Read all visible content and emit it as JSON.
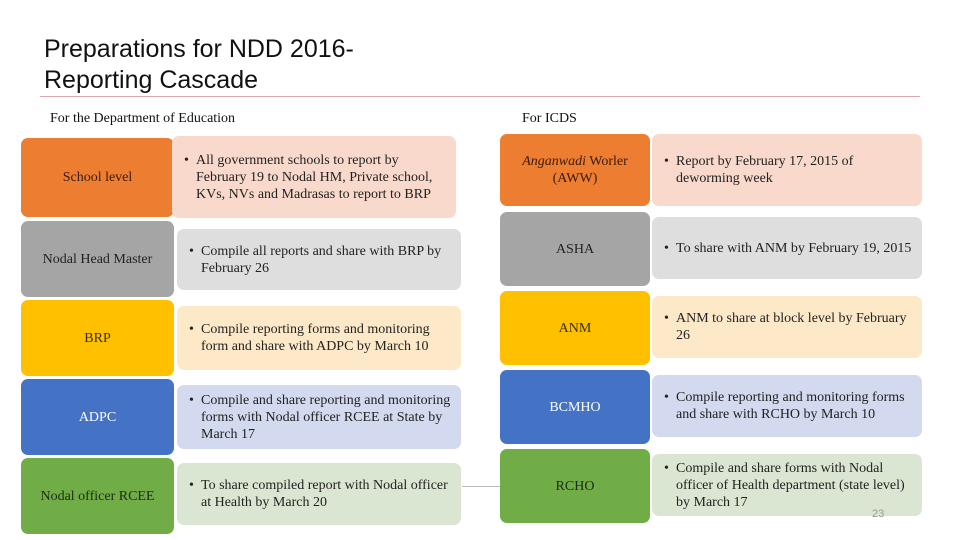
{
  "slide": {
    "title_line1": "Preparations for NDD 2016-",
    "title_line2": "Reporting Cascade",
    "page_number": "23"
  },
  "education": {
    "heading": "For the Department of Education",
    "rows": [
      {
        "level": "School level",
        "text": "All government schools to report by February 19 to Nodal HM, Private school, KVs, NVs and Madrasas to report to BRP"
      },
      {
        "level": "Nodal Head Master",
        "text": "Compile all reports and share with BRP by February 26"
      },
      {
        "level": "BRP",
        "text": "Compile reporting forms and monitoring form and share with ADPC by March 10"
      },
      {
        "level": "ADPC",
        "text": "Compile and share reporting and monitoring forms with Nodal officer RCEE at State by March 17"
      },
      {
        "level": "Nodal officer RCEE",
        "text": "To share compiled report with Nodal officer at Health by March 20"
      }
    ]
  },
  "icds": {
    "heading": "For ICDS",
    "rows": [
      {
        "level_italic": "Anganwadi",
        "level_rest": " Worler (AWW)",
        "text": "Report by February 17, 2015 of deworming week"
      },
      {
        "level": "ASHA",
        "text": "To share with ANM by February 19, 2015"
      },
      {
        "level": "ANM",
        "text": "ANM to share at block level by February 26"
      },
      {
        "level": "BCMHO",
        "text": "Compile reporting and monitoring forms and share with RCHO by March 10"
      },
      {
        "level": "RCHO",
        "text": "Compile and share forms with Nodal officer of Health department (state level) by March 17"
      }
    ]
  },
  "colors": {
    "orange": "#ed7d31",
    "gray": "#a5a5a5",
    "gold": "#ffc000",
    "blue": "#4472c4",
    "green": "#70ad47",
    "title_rule": "#e3a7ae"
  }
}
